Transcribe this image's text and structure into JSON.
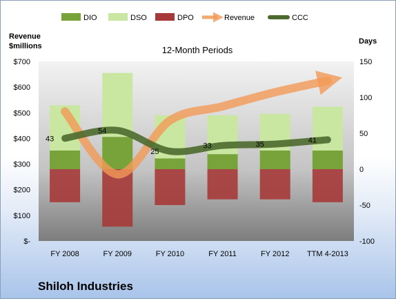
{
  "company": "Shiloh Industries",
  "chart_data": {
    "type": "bar",
    "title": "12-Month Periods",
    "categories": [
      "FY 2008",
      "FY 2009",
      "FY 2010",
      "FY 2011",
      "FY 2012",
      "TTM 4-2013"
    ],
    "y_left": {
      "label_line1": "Revenue",
      "label_line2": "$millions",
      "range": [
        0,
        700
      ],
      "ticks": [
        0,
        100,
        200,
        300,
        400,
        500,
        600,
        700
      ],
      "tick_labels": [
        "$-",
        "$100",
        "$200",
        "$300",
        "$400",
        "$500",
        "$600",
        "$700"
      ]
    },
    "y_right": {
      "label": "Days",
      "range": [
        -100,
        150
      ],
      "ticks": [
        -100,
        -50,
        0,
        50,
        100,
        150
      ],
      "tick_labels": [
        "-100",
        "-50",
        "0",
        "50",
        "100",
        "150"
      ]
    },
    "legend": {
      "placement": "top",
      "entries": [
        {
          "name": "DIO",
          "color": "#77a33a"
        },
        {
          "name": "DSO",
          "color": "#c9e7a0"
        },
        {
          "name": "DPO",
          "color": "#a63a3a"
        },
        {
          "name": "Revenue",
          "color": "#f29a56"
        },
        {
          "name": "CCC",
          "color": "#4d6a2e"
        }
      ]
    },
    "series": [
      {
        "name": "DPO",
        "axis": "right",
        "values": [
          -46,
          -80,
          -50,
          -42,
          -42,
          -46
        ]
      },
      {
        "name": "DIO",
        "axis": "right",
        "values": [
          26,
          45,
          15,
          21,
          26,
          26
        ]
      },
      {
        "name": "DSO",
        "axis": "right",
        "values": [
          63,
          89,
          60,
          54,
          51,
          61
        ]
      },
      {
        "name": "Revenue",
        "axis": "left",
        "values": [
          505,
          260,
          470,
          525,
          580,
          625
        ]
      },
      {
        "name": "CCC",
        "axis": "right",
        "values": [
          43,
          54,
          25,
          33,
          35,
          41
        ]
      }
    ],
    "data_labels": [
      "43",
      "54",
      "25",
      "33",
      "35",
      "41"
    ],
    "grid": false
  }
}
